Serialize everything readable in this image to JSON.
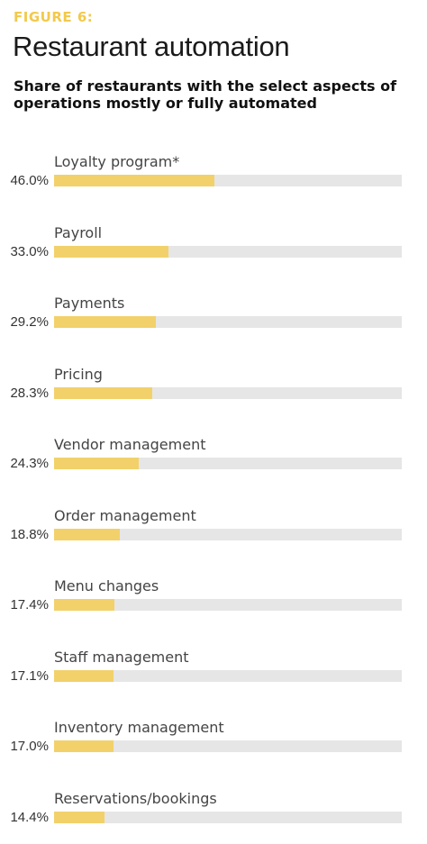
{
  "figure_label": "FIGURE 6:",
  "title": "Restaurant automation",
  "subtitle": "Share of restaurants with the select aspects of operations mostly or fully automated",
  "colors": {
    "accent": "#f2c94c",
    "bar_fill": "#f2d16b",
    "bar_track": "#e6e6e6"
  },
  "chart_data": {
    "type": "bar",
    "orientation": "horizontal",
    "title": "Restaurant automation",
    "subtitle": "Share of restaurants with the select aspects of operations mostly or fully automated",
    "xlim": [
      0,
      100
    ],
    "grid": false,
    "categories": [
      "Loyalty program*",
      "Payroll",
      "Payments",
      "Pricing",
      "Vendor management",
      "Order management",
      "Menu changes",
      "Staff management",
      "Inventory management",
      "Reservations/bookings"
    ],
    "values": [
      46.0,
      33.0,
      29.2,
      28.3,
      24.3,
      18.8,
      17.4,
      17.1,
      17.0,
      14.4
    ],
    "value_labels": [
      "46.0%",
      "33.0%",
      "29.2%",
      "28.3%",
      "24.3%",
      "18.8%",
      "17.4%",
      "17.1%",
      "17.0%",
      "14.4%"
    ]
  }
}
